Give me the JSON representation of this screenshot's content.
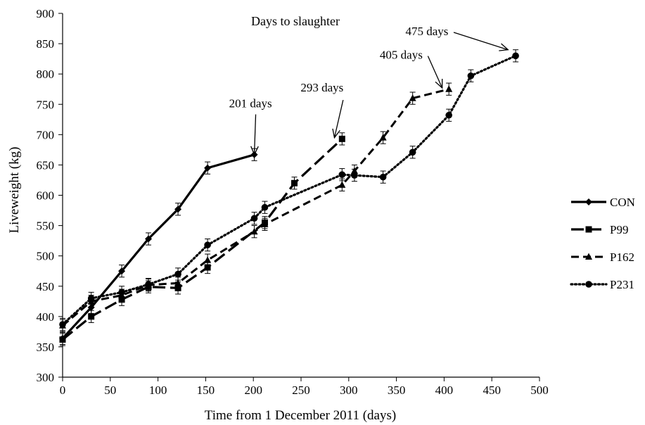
{
  "chart_data": {
    "type": "line",
    "title": "Days to slaughter",
    "xlabel": "Time from 1 December 2011 (days)",
    "ylabel": "Liveweight (kg)",
    "xlim": [
      0,
      500
    ],
    "ylim": [
      300,
      900
    ],
    "xticks": [
      0,
      50,
      100,
      150,
      200,
      250,
      300,
      350,
      400,
      450,
      500
    ],
    "yticks": [
      300,
      350,
      400,
      450,
      500,
      550,
      600,
      650,
      700,
      750,
      800,
      850,
      900
    ],
    "grid": false,
    "legend_position": "right",
    "error_bar_kg": 10,
    "series": [
      {
        "name": "CON",
        "marker": "diamond",
        "line_style": "solid",
        "x": [
          0,
          30,
          62,
          90,
          121,
          152,
          201
        ],
        "y": [
          364,
          415,
          475,
          528,
          577,
          645,
          667
        ]
      },
      {
        "name": "P99",
        "marker": "square",
        "line_style": "long-dash",
        "x": [
          0,
          30,
          62,
          90,
          121,
          152,
          212,
          243,
          293
        ],
        "y": [
          362,
          400,
          428,
          449,
          447,
          481,
          555,
          620,
          693
        ]
      },
      {
        "name": "P162",
        "marker": "triangle",
        "line_style": "dash",
        "x": [
          0,
          30,
          62,
          90,
          121,
          152,
          201,
          212,
          293,
          306,
          336,
          367,
          405
        ],
        "y": [
          385,
          425,
          435,
          452,
          455,
          493,
          540,
          552,
          617,
          640,
          695,
          760,
          775
        ]
      },
      {
        "name": "P231",
        "marker": "circle",
        "line_style": "dotted",
        "x": [
          0,
          30,
          62,
          90,
          121,
          152,
          201,
          212,
          293,
          306,
          336,
          367,
          405,
          428,
          475
        ],
        "y": [
          387,
          430,
          440,
          453,
          470,
          518,
          562,
          580,
          634,
          633,
          630,
          671,
          732,
          797,
          830
        ]
      }
    ],
    "annotations": [
      {
        "text": "201 days",
        "x": 201,
        "y": 667,
        "label_x": 197,
        "label_y": 745
      },
      {
        "text": "293 days",
        "x": 285,
        "y": 695,
        "label_x": 272,
        "label_y": 771
      },
      {
        "text": "405 days",
        "x": 398,
        "y": 777,
        "label_x": 355,
        "label_y": 825
      },
      {
        "text": "475 days",
        "x": 467,
        "y": 840,
        "label_x": 382,
        "label_y": 864
      }
    ]
  }
}
